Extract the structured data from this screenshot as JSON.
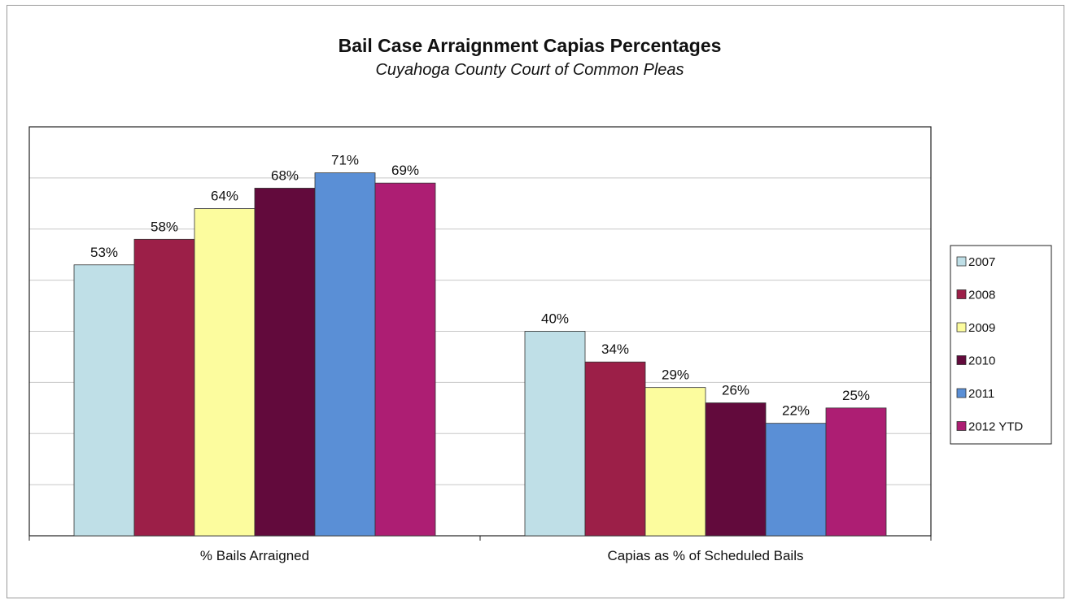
{
  "chart_data": {
    "type": "bar",
    "title": "Bail Case Arraignment Capias Percentages",
    "subtitle": "Cuyahoga County Court of Common Pleas",
    "categories": [
      "% Bails Arraigned",
      "Capias as % of Scheduled Bails"
    ],
    "series": [
      {
        "name": "2007",
        "color": "#bfdfe7",
        "values": [
          53,
          40
        ],
        "labels": [
          "53%",
          "40%"
        ]
      },
      {
        "name": "2008",
        "color": "#9c1f48",
        "values": [
          58,
          34
        ],
        "labels": [
          "58%",
          "34%"
        ]
      },
      {
        "name": "2009",
        "color": "#fcfc9e",
        "values": [
          64,
          29
        ],
        "labels": [
          "64%",
          "29%"
        ]
      },
      {
        "name": "2010",
        "color": "#620a3c",
        "values": [
          68,
          26
        ],
        "labels": [
          "68%",
          "26%"
        ]
      },
      {
        "name": "2011",
        "color": "#5a8fd6",
        "values": [
          71,
          22
        ],
        "labels": [
          "71%",
          "22%"
        ]
      },
      {
        "name": "2012 YTD",
        "color": "#ad1e73",
        "values": [
          69,
          25
        ],
        "labels": [
          "69%",
          "25%"
        ]
      }
    ],
    "ylim": [
      0,
      80
    ],
    "grid": true,
    "legend": "right"
  }
}
